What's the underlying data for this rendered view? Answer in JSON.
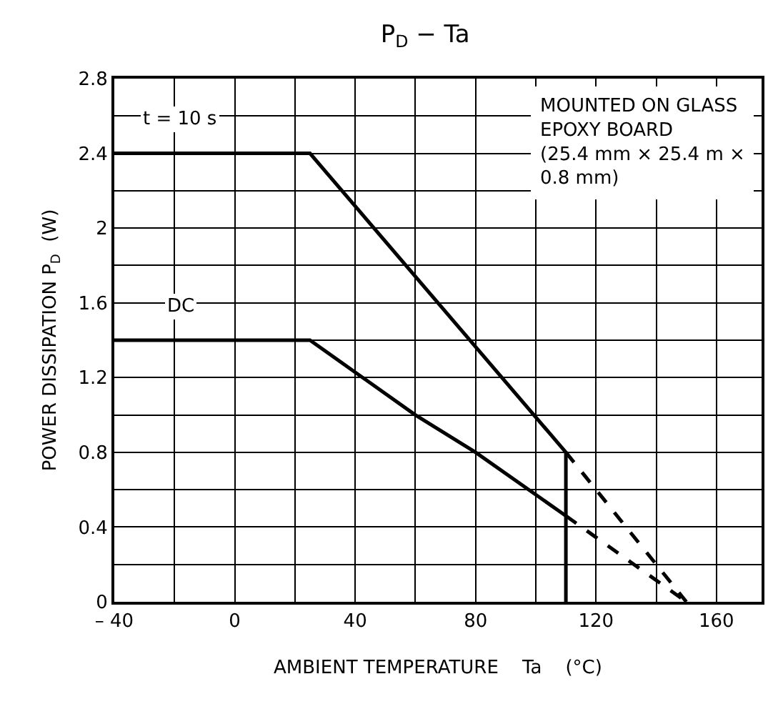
{
  "chart_data": {
    "type": "line",
    "title": "P$_{D}$ − Ta",
    "xlabel": "AMBIENT TEMPERATURE    Ta    (°C)",
    "ylabel": "POWER DISSIPATION P$_{D}$  (W)",
    "xlim": [
      -40,
      175
    ],
    "xticks": [
      {
        "value": -40,
        "label": "– 40"
      },
      0,
      40,
      80,
      120,
      160
    ],
    "ylim": [
      0,
      2.8
    ],
    "yticks": [
      0,
      0.4,
      0.8,
      1.2,
      1.6,
      2.0,
      2.4,
      2.8
    ],
    "grid": true,
    "line_style": "solid",
    "series": [
      {
        "name": "t = 10 s",
        "color": "#000000",
        "x": [
          -40,
          25,
          110,
          110
        ],
        "values": [
          2.4,
          2.4,
          0.8,
          0
        ]
      },
      {
        "name": "DC",
        "color": "#000000",
        "x": [
          -40,
          25,
          60,
          80,
          110
        ],
        "values": [
          1.4,
          1.4,
          1.0,
          0.8,
          0.46
        ]
      },
      {
        "color": "#000000",
        "line_style": "dashed",
        "x": [
          110,
          150
        ],
        "values": [
          0.8,
          0
        ]
      },
      {
        "color": "#000000",
        "line_style": "dashed",
        "x": [
          110,
          150
        ],
        "values": [
          0.46,
          0
        ]
      }
    ],
    "annotations": [
      "MOUNTED ON GLASS\nEPOXY BOARD\n(25.4 mm × 25.4 m ×\n0.8 mm)"
    ]
  }
}
